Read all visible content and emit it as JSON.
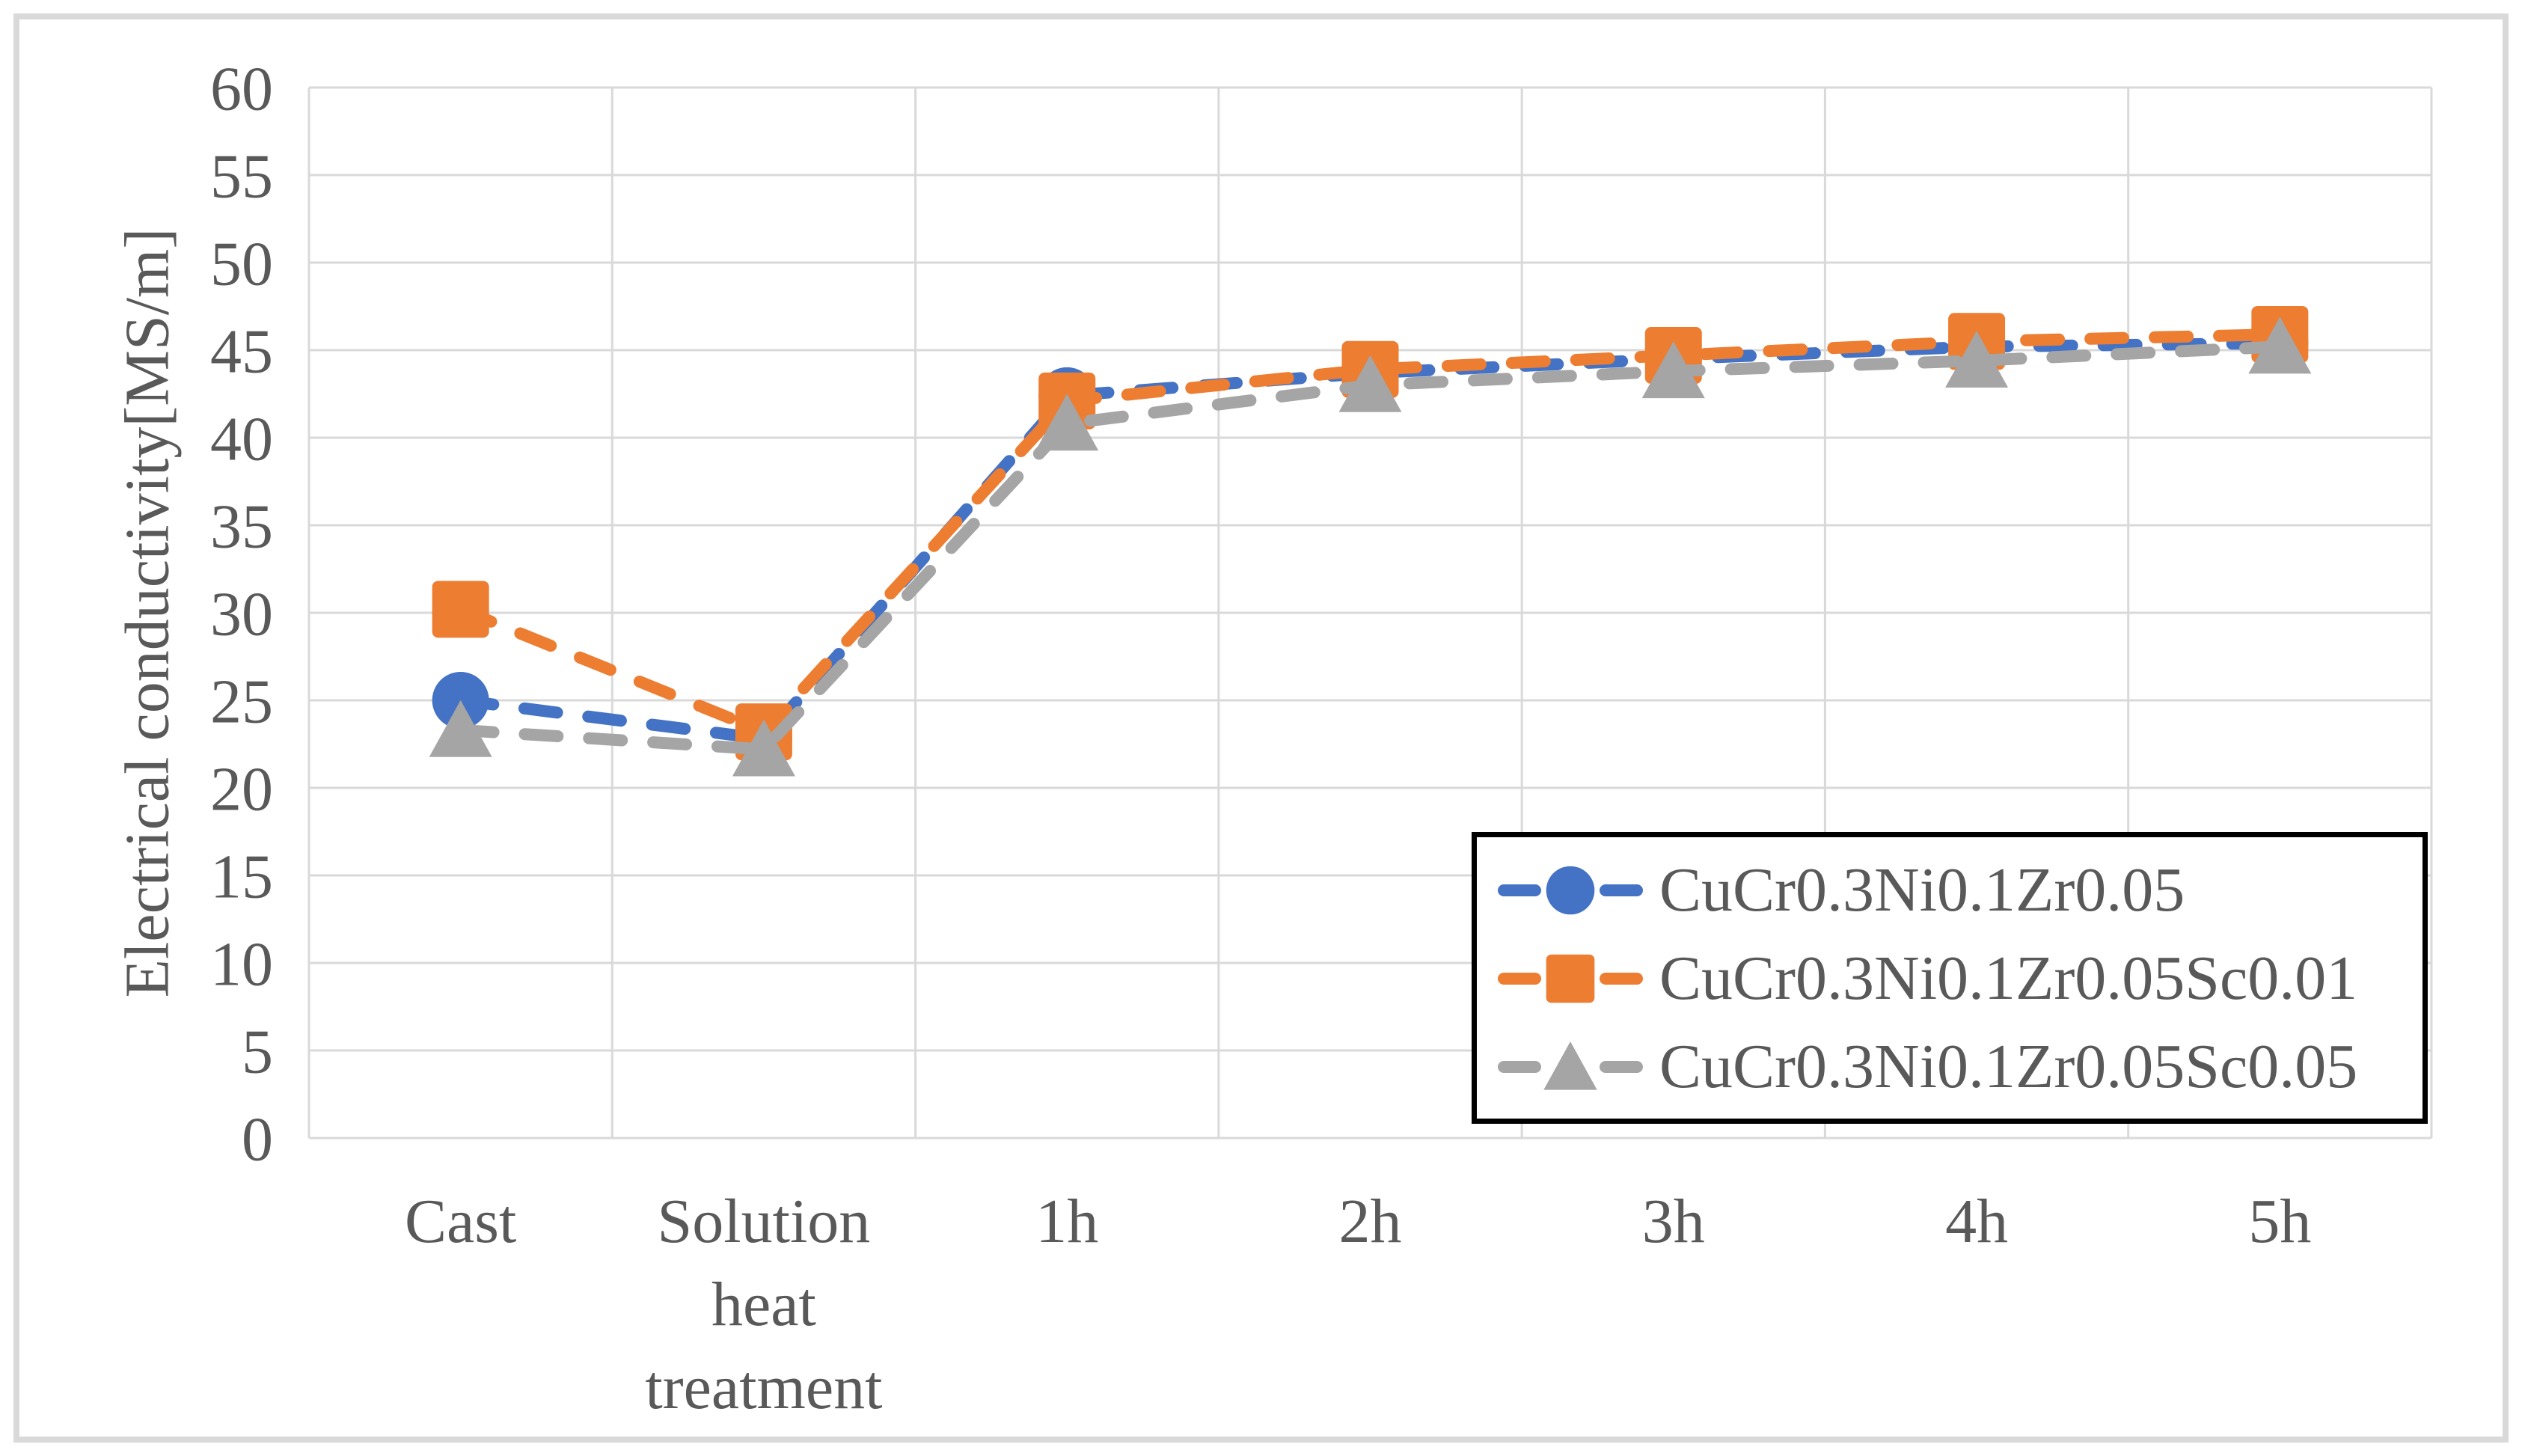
{
  "chart_data": {
    "type": "line",
    "title": "",
    "xlabel": "",
    "ylabel": "Electrical conductivity[MS/m]",
    "ylim": [
      0,
      60
    ],
    "ytick_step": 5,
    "grid": true,
    "line_style": "dashed",
    "legend_position": "inside-bottom-right",
    "categories": [
      "Cast",
      "Solution heat treatment",
      "1h",
      "2h",
      "3h",
      "4h",
      "5h"
    ],
    "series": [
      {
        "name": "CuCr0.3Ni0.1Zr0.05",
        "marker": "circle",
        "color": "#4472C4",
        "values": [
          25.0,
          22.8,
          42.4,
          43.7,
          44.5,
          45.2,
          45.4
        ]
      },
      {
        "name": "CuCr0.3Ni0.1Zr0.05Sc0.01",
        "marker": "square",
        "color": "#ED7D31",
        "values": [
          30.2,
          23.2,
          42.1,
          43.9,
          44.7,
          45.5,
          45.9
        ]
      },
      {
        "name": "CuCr0.3Ni0.1Zr0.05Sc0.05",
        "marker": "triangle",
        "color": "#A5A5A5",
        "values": [
          23.3,
          22.2,
          40.8,
          43.0,
          43.8,
          44.4,
          45.2
        ]
      }
    ]
  },
  "styles": {
    "background": "#FFFFFF",
    "text_color": "#595959",
    "gridline_color": "#D9D9D9",
    "outer_border_color": "#D9D9D9",
    "legend_border_color": "#000000"
  }
}
